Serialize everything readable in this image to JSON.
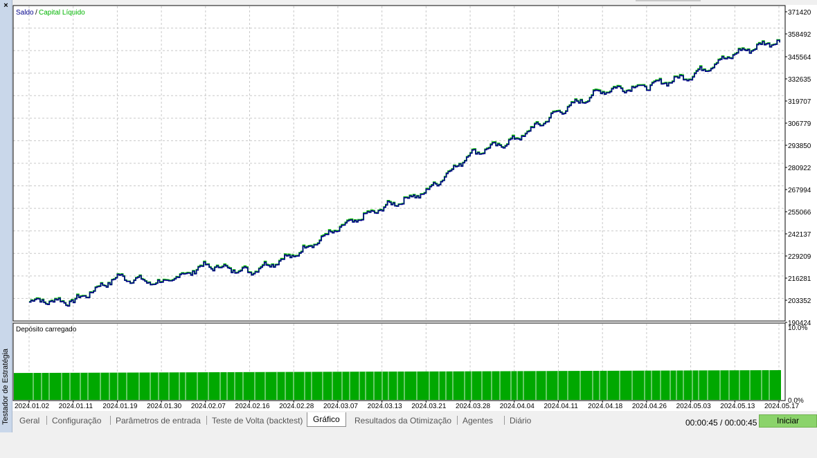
{
  "side_panel": {
    "title": "Testador de Estratégia",
    "close_symbol": "×"
  },
  "chart": {
    "legend_balance": "Saldo",
    "legend_separator": "/",
    "legend_equity": "Capital Líquido",
    "y_ticks": [
      "371420",
      "358492",
      "345564",
      "332635",
      "319707",
      "306779",
      "293850",
      "280922",
      "267994",
      "255066",
      "242137",
      "229209",
      "216281",
      "203352",
      "190424"
    ],
    "sub_title": "Depósito carregado",
    "sub_y_ticks": [
      "10.0%",
      "0.0%"
    ],
    "x_ticks": [
      "2024.01.02",
      "2024.01.11",
      "2024.01.19",
      "2024.01.30",
      "2024.02.07",
      "2024.02.16",
      "2024.02.28",
      "2024.03.07",
      "2024.03.13",
      "2024.03.21",
      "2024.03.28",
      "2024.04.04",
      "2024.04.11",
      "2024.04.18",
      "2024.04.26",
      "2024.05.03",
      "2024.05.13",
      "2024.05.17"
    ],
    "colors": {
      "balance": "#00008b",
      "equity": "#00b400",
      "deposit": "#00a800",
      "grid": "#c8c8c8"
    }
  },
  "chart_data": {
    "type": "line",
    "ylim": [
      190424,
      371420
    ],
    "series": [
      {
        "name": "Saldo",
        "x": [
          "2024.01.02",
          "2024.01.11",
          "2024.01.19",
          "2024.01.30",
          "2024.02.07",
          "2024.02.16",
          "2024.02.28",
          "2024.03.07",
          "2024.03.13",
          "2024.03.21",
          "2024.03.28",
          "2024.04.04",
          "2024.04.11",
          "2024.04.18",
          "2024.04.26",
          "2024.05.03",
          "2024.05.13",
          "2024.05.17"
        ],
        "values": [
          203000,
          202500,
          216800,
          213000,
          223500,
          220000,
          229500,
          245000,
          257000,
          266500,
          288500,
          296500,
          313000,
          325500,
          328000,
          334000,
          347000,
          355000
        ]
      },
      {
        "name": "Capital Líquido",
        "x": [
          "2024.01.02",
          "2024.01.11",
          "2024.01.19",
          "2024.01.30",
          "2024.02.07",
          "2024.02.16",
          "2024.02.28",
          "2024.03.07",
          "2024.03.13",
          "2024.03.21",
          "2024.03.28",
          "2024.04.04",
          "2024.04.11",
          "2024.04.18",
          "2024.04.26",
          "2024.05.03",
          "2024.05.13",
          "2024.05.17"
        ],
        "values": [
          203300,
          202800,
          217000,
          213300,
          223800,
          220400,
          229900,
          245400,
          257300,
          266800,
          288800,
          296900,
          313300,
          325900,
          328300,
          334400,
          347300,
          355300
        ]
      }
    ],
    "deposit_load": {
      "ylim": [
        0,
        10
      ],
      "unit": "%",
      "values_start": 3.7,
      "values_end": 4.1
    }
  },
  "tabs": [
    {
      "label": "Geral",
      "active": false
    },
    {
      "label": "Configuração",
      "active": false
    },
    {
      "label": "Parâmetros de entrada",
      "active": false
    },
    {
      "label": "Teste de Volta (backtest)",
      "active": false
    },
    {
      "label": "Gráfico",
      "active": true
    },
    {
      "label": "Resultados da Otimização",
      "active": false
    },
    {
      "label": "Agentes",
      "active": false
    },
    {
      "label": "Diário",
      "active": false
    }
  ],
  "status": {
    "timer": "00:00:45 / 00:00:45",
    "start_button": "Iniciar",
    "start_color": "#8bd36b"
  }
}
